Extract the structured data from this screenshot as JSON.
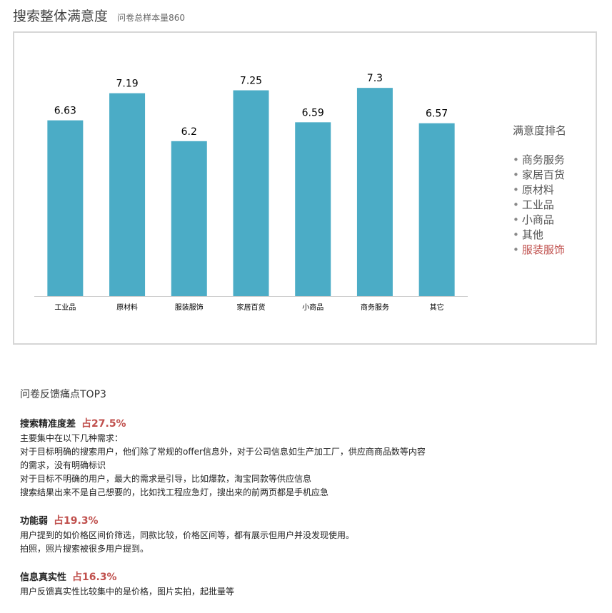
{
  "header": {
    "title": "搜索整体满意度",
    "subtitle": "问卷总样本量860"
  },
  "chart_data": {
    "type": "bar",
    "title": "",
    "xlabel": "",
    "ylabel": "",
    "categories": [
      "工业品",
      "原材料",
      "服装服饰",
      "家居百货",
      "小商品",
      "商务服务",
      "其它"
    ],
    "values": [
      6.63,
      7.19,
      6.2,
      7.25,
      6.59,
      7.3,
      6.57
    ],
    "ylim": [
      3.0,
      7.7
    ],
    "grid": false,
    "color": "#4bacc6"
  },
  "ranking": {
    "title": "满意度排名",
    "items": [
      {
        "label": "商务服务",
        "highlight": false
      },
      {
        "label": "家居百货",
        "highlight": false
      },
      {
        "label": "原材料",
        "highlight": false
      },
      {
        "label": "工业品",
        "highlight": false
      },
      {
        "label": "小商品",
        "highlight": false
      },
      {
        "label": "其他",
        "highlight": false
      },
      {
        "label": "服装服饰",
        "highlight": true
      }
    ],
    "highlight_color": "#c0504d"
  },
  "feedback": {
    "title": "问卷反馈痛点TOP3",
    "sections": [
      {
        "heading": "搜索精准度差",
        "percent": "占27.5%",
        "lines": [
          "主要集中在以下几种需求：",
          "对于目标明确的搜索用户，他们除了常规的offer信息外，对于公司信息如生产加工厂，供应商商品数等内容",
          "的需求，没有明确标识",
          "对于目标不明确的用户，最大的需求是引导，比如爆款，淘宝同款等供应信息",
          "搜索结果出来不是自己想要的，比如找工程应急灯，搜出来的前两页都是手机应急"
        ]
      },
      {
        "heading": "功能弱",
        "percent": "占19.3%",
        "lines": [
          "用户提到的如价格区间价筛选，同款比较，价格区间等，都有展示但用户并没发现使用。",
          "拍照，照片搜索被很多用户提到。"
        ]
      },
      {
        "heading": "信息真实性",
        "percent": "占16.3%",
        "lines": [
          "用户反馈真实性比较集中的是价格，图片实拍，起批量等"
        ]
      }
    ]
  }
}
